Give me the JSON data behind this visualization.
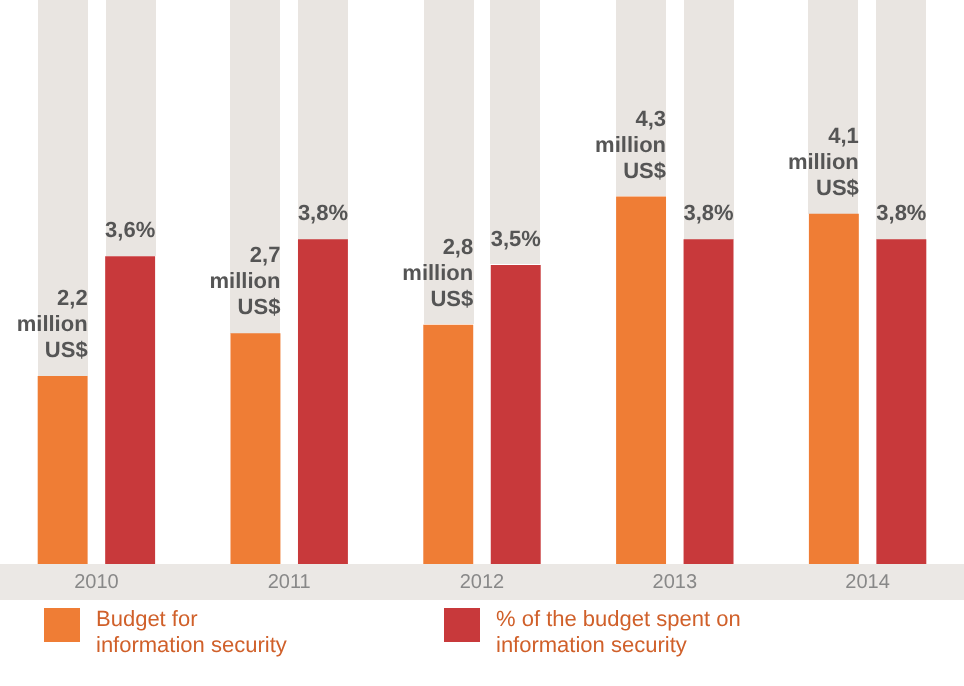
{
  "chart_data": {
    "type": "bar",
    "categories": [
      "2010",
      "2011",
      "2012",
      "2013",
      "2014"
    ],
    "series": [
      {
        "name": "Budget for information security",
        "color": "#ef7d35",
        "values": [
          2.2,
          2.7,
          2.8,
          4.3,
          4.1
        ],
        "value_labels": [
          "2,2 million US$",
          "2,7 million US$",
          "2,8 million US$",
          "4,3 million US$",
          "4,1 million US$"
        ]
      },
      {
        "name": "% of the budget spent on information security",
        "color": "#c8393b",
        "values": [
          3.6,
          3.8,
          3.5,
          3.8,
          3.8
        ],
        "value_labels": [
          "3,6%",
          "3,8%",
          "3,5%",
          "3,8%",
          "3,8%"
        ]
      }
    ],
    "ylim": [
      0,
      6.6
    ],
    "tick_labels": "x",
    "grid": false,
    "legend": "bottom"
  }
}
